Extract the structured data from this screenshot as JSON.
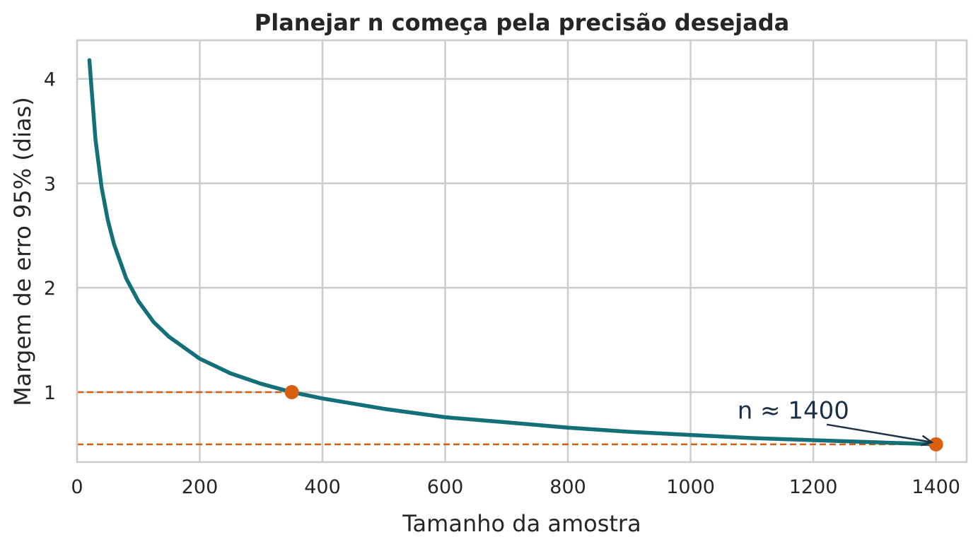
{
  "chart_data": {
    "type": "line",
    "title": "Planejar n começa pela precisão desejada",
    "xlabel": "Tamanho da amostra",
    "ylabel": "Margem de erro 95% (dias)",
    "xlim": [
      0,
      1450
    ],
    "ylim": [
      0.33,
      4.37
    ],
    "xticks": [
      0,
      200,
      400,
      600,
      800,
      1000,
      1200,
      1400
    ],
    "yticks": [
      1,
      2,
      3,
      4
    ],
    "grid": true,
    "series": [
      {
        "x": [
          20,
          30,
          40,
          50,
          60,
          80,
          100,
          125,
          150,
          200,
          250,
          300,
          350,
          400,
          500,
          600,
          700,
          800,
          900,
          1000,
          1100,
          1200,
          1300,
          1400
        ],
        "y": [
          4.18,
          3.42,
          2.96,
          2.65,
          2.42,
          2.09,
          1.87,
          1.67,
          1.53,
          1.32,
          1.18,
          1.08,
          1.0,
          0.94,
          0.84,
          0.76,
          0.71,
          0.66,
          0.62,
          0.59,
          0.56,
          0.54,
          0.52,
          0.5
        ],
        "color": "#136f78"
      }
    ],
    "highlight_points": [
      {
        "x": 350,
        "y": 1.0
      },
      {
        "x": 1400,
        "y": 0.5
      }
    ],
    "reference_lines": [
      {
        "y": 1.0,
        "x_end": 350
      },
      {
        "y": 0.5,
        "x_end": 1400
      }
    ],
    "highlight_color": "#d95f0e",
    "annotation": {
      "text": "n ≈ 1400",
      "text_at": [
        1120,
        0.8
      ],
      "arrow_to": [
        1400,
        0.5
      ],
      "color": "#1b2f45"
    }
  }
}
